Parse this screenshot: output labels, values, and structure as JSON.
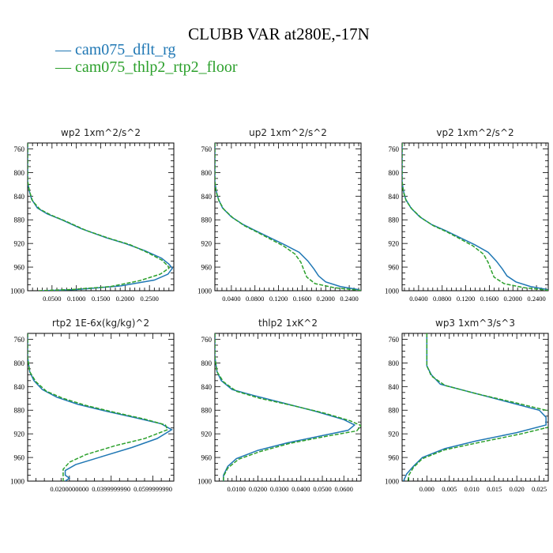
{
  "figure": {
    "title": "CLUBB VAR at280E,-17N",
    "legend": [
      {
        "label": "cam075_dflt_rg",
        "color": "#1f77b4",
        "dash": "solid"
      },
      {
        "label": "cam075_thlp2_rtp2_floor",
        "color": "#2ca02c",
        "dash": "dashed"
      }
    ],
    "legend_placement": "top-left under title"
  },
  "chart_data": [
    {
      "type": "line",
      "title": "wp2  1xm^2/s^2",
      "ylim": [
        1000,
        750
      ],
      "yticks": [
        760,
        800,
        840,
        880,
        920,
        960,
        1000
      ],
      "xlim": [
        0,
        0.3
      ],
      "xticks": [
        0.05,
        0.1,
        0.15,
        0.2,
        0.25
      ],
      "xticklabels": [
        "0.0500",
        "0.1000",
        "0.1500",
        "0.2000",
        "0.2500"
      ],
      "series": [
        {
          "name": "cam075_dflt_rg",
          "points": [
            [
              0,
              750
            ],
            [
              0,
              790
            ],
            [
              0,
              815
            ],
            [
              0.003,
              830
            ],
            [
              0.008,
              845
            ],
            [
              0.02,
              860
            ],
            [
              0.04,
              870
            ],
            [
              0.07,
              880
            ],
            [
              0.11,
              895
            ],
            [
              0.16,
              910
            ],
            [
              0.2,
              920
            ],
            [
              0.24,
              932
            ],
            [
              0.275,
              945
            ],
            [
              0.29,
              955
            ],
            [
              0.297,
              962
            ],
            [
              0.288,
              972
            ],
            [
              0.26,
              982
            ],
            [
              0.19,
              992
            ],
            [
              0.1,
              998
            ],
            [
              0.03,
              1000
            ]
          ]
        },
        {
          "name": "cam075_thlp2_rtp2_floor",
          "points": [
            [
              0,
              750
            ],
            [
              0,
              790
            ],
            [
              0,
              815
            ],
            [
              0.004,
              832
            ],
            [
              0.01,
              848
            ],
            [
              0.025,
              862
            ],
            [
              0.048,
              872
            ],
            [
              0.08,
              883
            ],
            [
              0.12,
              898
            ],
            [
              0.17,
              912
            ],
            [
              0.21,
              922
            ],
            [
              0.245,
              935
            ],
            [
              0.275,
              948
            ],
            [
              0.288,
              958
            ],
            [
              0.29,
              962
            ],
            [
              0.272,
              972
            ],
            [
              0.23,
              983
            ],
            [
              0.17,
              993
            ],
            [
              0.09,
              998
            ],
            [
              0.02,
              1000
            ]
          ]
        }
      ]
    },
    {
      "type": "line",
      "title": "up2  1xm^2/s^2",
      "ylim": [
        1000,
        750
      ],
      "yticks": [
        760,
        800,
        840,
        880,
        920,
        960,
        1000
      ],
      "xlim": [
        0.012,
        0.26
      ],
      "xticks": [
        0.04,
        0.08,
        0.12,
        0.16,
        0.2,
        0.24
      ],
      "xticklabels": [
        "0.0400",
        "0.0800",
        "0.1200",
        "0.1600",
        "0.2000",
        "0.2400"
      ],
      "series": [
        {
          "name": "cam075_dflt_rg",
          "points": [
            [
              0.012,
              750
            ],
            [
              0.012,
              790
            ],
            [
              0.012,
              815
            ],
            [
              0.014,
              830
            ],
            [
              0.018,
              845
            ],
            [
              0.025,
              860
            ],
            [
              0.04,
              875
            ],
            [
              0.06,
              888
            ],
            [
              0.08,
              898
            ],
            [
              0.105,
              910
            ],
            [
              0.13,
              922
            ],
            [
              0.155,
              935
            ],
            [
              0.17,
              950
            ],
            [
              0.18,
              963
            ],
            [
              0.188,
              975
            ],
            [
              0.2,
              985
            ],
            [
              0.225,
              993
            ],
            [
              0.255,
              998
            ],
            [
              0.26,
              1000
            ]
          ]
        },
        {
          "name": "cam075_thlp2_rtp2_floor",
          "points": [
            [
              0.012,
              750
            ],
            [
              0.012,
              790
            ],
            [
              0.012,
              815
            ],
            [
              0.014,
              832
            ],
            [
              0.019,
              848
            ],
            [
              0.027,
              862
            ],
            [
              0.043,
              877
            ],
            [
              0.062,
              890
            ],
            [
              0.082,
              900
            ],
            [
              0.105,
              912
            ],
            [
              0.128,
              924
            ],
            [
              0.148,
              938
            ],
            [
              0.158,
              952
            ],
            [
              0.163,
              965
            ],
            [
              0.168,
              977
            ],
            [
              0.182,
              988
            ],
            [
              0.215,
              995
            ],
            [
              0.255,
              999
            ],
            [
              0.26,
              1000
            ]
          ]
        }
      ]
    },
    {
      "type": "line",
      "title": "vp2  1xm^2/s^2",
      "ylim": [
        1000,
        750
      ],
      "yticks": [
        760,
        800,
        840,
        880,
        920,
        960,
        1000
      ],
      "xlim": [
        0.012,
        0.26
      ],
      "xticks": [
        0.04,
        0.08,
        0.12,
        0.16,
        0.2,
        0.24
      ],
      "xticklabels": [
        "0.0400",
        "0.0800",
        "0.1200",
        "0.1600",
        "0.2000",
        "0.2400"
      ],
      "series": [
        {
          "name": "cam075_dflt_rg",
          "points": [
            [
              0.012,
              750
            ],
            [
              0.012,
              790
            ],
            [
              0.012,
              815
            ],
            [
              0.014,
              830
            ],
            [
              0.018,
              845
            ],
            [
              0.027,
              860
            ],
            [
              0.042,
              875
            ],
            [
              0.062,
              888
            ],
            [
              0.085,
              898
            ],
            [
              0.11,
              910
            ],
            [
              0.135,
              922
            ],
            [
              0.158,
              935
            ],
            [
              0.172,
              950
            ],
            [
              0.182,
              963
            ],
            [
              0.19,
              975
            ],
            [
              0.205,
              985
            ],
            [
              0.23,
              993
            ],
            [
              0.258,
              998
            ],
            [
              0.26,
              1000
            ]
          ]
        },
        {
          "name": "cam075_thlp2_rtp2_floor",
          "points": [
            [
              0.012,
              750
            ],
            [
              0.012,
              790
            ],
            [
              0.012,
              815
            ],
            [
              0.014,
              832
            ],
            [
              0.019,
              848
            ],
            [
              0.029,
              862
            ],
            [
              0.045,
              877
            ],
            [
              0.065,
              890
            ],
            [
              0.087,
              900
            ],
            [
              0.11,
              912
            ],
            [
              0.132,
              924
            ],
            [
              0.15,
              938
            ],
            [
              0.158,
              952
            ],
            [
              0.163,
              965
            ],
            [
              0.168,
              977
            ],
            [
              0.185,
              988
            ],
            [
              0.22,
              995
            ],
            [
              0.258,
              999
            ],
            [
              0.26,
              1000
            ]
          ]
        }
      ]
    },
    {
      "type": "line",
      "title": "rtp2  1E-6x(kg/kg)^2",
      "ylim": [
        1000,
        750
      ],
      "yticks": [
        760,
        800,
        840,
        880,
        920,
        960,
        1000
      ],
      "xlim": [
        0,
        0.07
      ],
      "xticks": [
        0.02,
        0.04,
        0.06
      ],
      "xticklabels": [
        "0.0200000000",
        "0.0399999990",
        "0.0599999990"
      ],
      "series": [
        {
          "name": "cam075_dflt_rg",
          "points": [
            [
              0,
              750
            ],
            [
              0,
              790
            ],
            [
              0.001,
              815
            ],
            [
              0.003,
              830
            ],
            [
              0.007,
              845
            ],
            [
              0.014,
              858
            ],
            [
              0.024,
              870
            ],
            [
              0.038,
              882
            ],
            [
              0.052,
              893
            ],
            [
              0.064,
              903
            ],
            [
              0.069,
              913
            ],
            [
              0.062,
              928
            ],
            [
              0.05,
              943
            ],
            [
              0.036,
              958
            ],
            [
              0.023,
              972
            ],
            [
              0.018,
              982
            ],
            [
              0.018,
              990
            ],
            [
              0.02,
              995
            ],
            [
              0.018,
              1000
            ]
          ]
        },
        {
          "name": "cam075_thlp2_rtp2_floor",
          "points": [
            [
              0,
              750
            ],
            [
              0,
              790
            ],
            [
              0.001,
              815
            ],
            [
              0.004,
              832
            ],
            [
              0.009,
              848
            ],
            [
              0.017,
              860
            ],
            [
              0.028,
              872
            ],
            [
              0.042,
              884
            ],
            [
              0.056,
              895
            ],
            [
              0.066,
              905
            ],
            [
              0.067,
              913
            ],
            [
              0.056,
              928
            ],
            [
              0.042,
              940
            ],
            [
              0.028,
              955
            ],
            [
              0.02,
              968
            ],
            [
              0.017,
              980
            ],
            [
              0.017,
              990
            ],
            [
              0.017,
              1000
            ]
          ]
        }
      ]
    },
    {
      "type": "line",
      "title": "thlp2  1xK^2",
      "ylim": [
        1000,
        750
      ],
      "yticks": [
        760,
        800,
        840,
        880,
        920,
        960,
        1000
      ],
      "xlim": [
        0,
        0.068
      ],
      "xticks": [
        0.01,
        0.02,
        0.03,
        0.04,
        0.05,
        0.06
      ],
      "xticklabels": [
        "0.0100",
        "0.0200",
        "0.0300",
        "0.0400",
        "0.0500",
        "0.0600"
      ],
      "series": [
        {
          "name": "cam075_dflt_rg",
          "points": [
            [
              0,
              750
            ],
            [
              0,
              790
            ],
            [
              0.001,
              815
            ],
            [
              0.003,
              830
            ],
            [
              0.008,
              845
            ],
            [
              0.018,
              855
            ],
            [
              0.032,
              868
            ],
            [
              0.047,
              882
            ],
            [
              0.06,
              896
            ],
            [
              0.065,
              905
            ],
            [
              0.062,
              914
            ],
            [
              0.05,
              923
            ],
            [
              0.034,
              935
            ],
            [
              0.02,
              948
            ],
            [
              0.01,
              962
            ],
            [
              0.006,
              975
            ],
            [
              0.004,
              990
            ],
            [
              0.004,
              1000
            ]
          ]
        },
        {
          "name": "cam075_thlp2_rtp2_floor",
          "points": [
            [
              0,
              750
            ],
            [
              0,
              790
            ],
            [
              0.001,
              815
            ],
            [
              0.004,
              832
            ],
            [
              0.01,
              848
            ],
            [
              0.021,
              860
            ],
            [
              0.036,
              872
            ],
            [
              0.051,
              885
            ],
            [
              0.063,
              898
            ],
            [
              0.068,
              906
            ],
            [
              0.066,
              915
            ],
            [
              0.052,
              924
            ],
            [
              0.035,
              936
            ],
            [
              0.021,
              950
            ],
            [
              0.011,
              963
            ],
            [
              0.006,
              978
            ],
            [
              0.004,
              992
            ],
            [
              0.004,
              1000
            ]
          ]
        }
      ]
    },
    {
      "type": "line",
      "title": "wp3  1xm^3/s^3",
      "ylim": [
        1000,
        750
      ],
      "yticks": [
        760,
        800,
        840,
        880,
        920,
        960,
        1000
      ],
      "xlim": [
        -0.0055,
        0.027
      ],
      "xticks": [
        0,
        0.005,
        0.01,
        0.015,
        0.02,
        0.025
      ],
      "xticklabels": [
        "0.000",
        "0.005",
        "0.010",
        "0.015",
        "0.020",
        "0.025"
      ],
      "series": [
        {
          "name": "cam075_dflt_rg",
          "points": [
            [
              0,
              750
            ],
            [
              0,
              790
            ],
            [
              0,
              805
            ],
            [
              0.001,
              820
            ],
            [
              0.003,
              836
            ],
            [
              0.01,
              850
            ],
            [
              0.018,
              866
            ],
            [
              0.025,
              880
            ],
            [
              0.0265,
              892
            ],
            [
              0.0265,
              905
            ],
            [
              0.02,
              918
            ],
            [
              0.011,
              932
            ],
            [
              0.004,
              945
            ],
            [
              -0.001,
              960
            ],
            [
              -0.003,
              975
            ],
            [
              -0.0045,
              988
            ],
            [
              -0.0052,
              1000
            ]
          ]
        },
        {
          "name": "cam075_thlp2_rtp2_floor",
          "points": [
            [
              0,
              750
            ],
            [
              0,
              790
            ],
            [
              0,
              805
            ],
            [
              0.001,
              822
            ],
            [
              0.004,
              838
            ],
            [
              0.011,
              852
            ],
            [
              0.02,
              868
            ],
            [
              0.0275,
              882
            ],
            [
              0.0295,
              895
            ],
            [
              0.028,
              907
            ],
            [
              0.021,
              920
            ],
            [
              0.012,
              934
            ],
            [
              0.004,
              947
            ],
            [
              -0.001,
              962
            ],
            [
              -0.003,
              977
            ],
            [
              -0.004,
              990
            ],
            [
              -0.0042,
              1000
            ]
          ]
        }
      ]
    }
  ]
}
